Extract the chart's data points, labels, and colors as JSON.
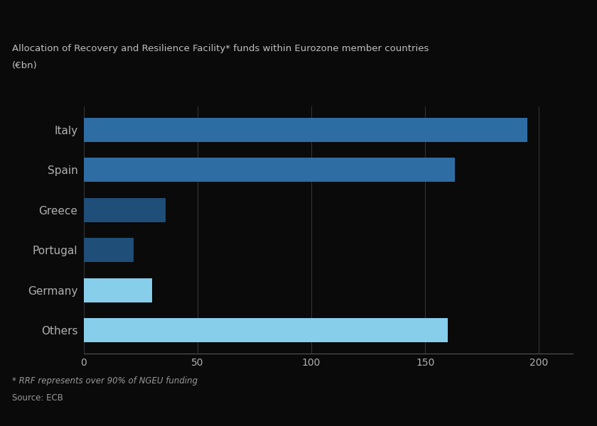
{
  "categories": [
    "Italy",
    "Spain",
    "Greece",
    "Portugal",
    "Germany",
    "Others"
  ],
  "values": [
    195,
    163,
    36,
    22,
    30,
    160
  ],
  "colors": [
    "#2e6da4",
    "#2e6da4",
    "#1f4e79",
    "#1f4e79",
    "#87ceeb",
    "#87ceeb"
  ],
  "title_line1": "Allocation of Recovery and Resilience Facility* funds within Eurozone member countries",
  "title_line2": "(€bn)",
  "footnote1": "* RRF represents over 90% of NGEU funding",
  "footnote2": "Source: ECB",
  "xlim": [
    0,
    215
  ],
  "xticks": [
    0,
    50,
    100,
    150,
    200
  ],
  "background_color": "#0a0a0a",
  "text_color": "#b0b0b0",
  "title_color": "#c0c0c0",
  "bar_height": 0.6,
  "grid_color": "#333333",
  "footnote_color": "#999999",
  "axis_line_color": "#555555"
}
